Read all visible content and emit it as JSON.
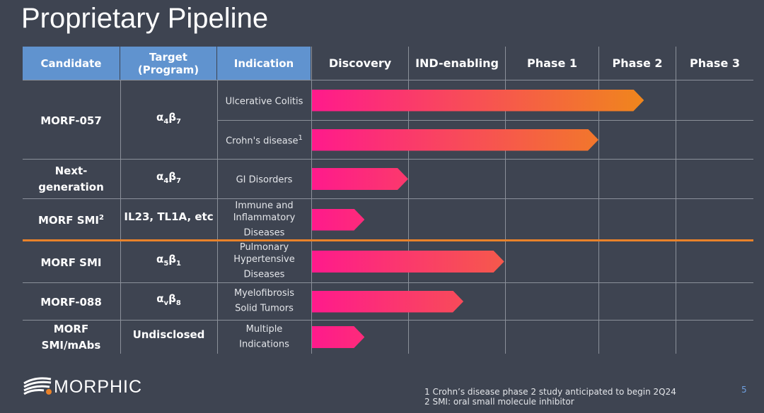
{
  "title": "Proprietary Pipeline",
  "headers": {
    "candidate": "Candidate",
    "target_line1": "Target",
    "target_line2": "(Program)",
    "indication": "Indication"
  },
  "stages": [
    "Discovery",
    "IND-enabling",
    "Phase 1",
    "Phase 2",
    "Phase 3"
  ],
  "colors": {
    "bar_start": "#ff1a8c",
    "bar_end": "#f0861c",
    "header": "#6093cf",
    "divider": "#e9822a",
    "background": "#3e4451"
  },
  "groups": [
    {
      "candidate": "MORF-057",
      "candidate_sup": "",
      "target": "α",
      "target_sub1": "4",
      "target_b": "β",
      "target_sub2": "7",
      "indications": [
        {
          "label": "Ulcerative Colitis",
          "sup": "",
          "progress_stages": 3.59
        },
        {
          "label": "Crohn's disease",
          "sup": "1",
          "progress_stages": 3.0
        }
      ]
    },
    {
      "candidate": "Next-generation",
      "candidate_sup": "",
      "target": "α",
      "target_sub1": "4",
      "target_b": "β",
      "target_sub2": "7",
      "indications": [
        {
          "label": "GI Disorders",
          "sup": "",
          "progress_stages": 1.0
        }
      ]
    },
    {
      "candidate": "MORF SMI",
      "candidate_sup": "2",
      "target": "IL23, TL1A, etc",
      "target_sub1": "",
      "target_b": "",
      "target_sub2": "",
      "indications": [
        {
          "label": "Immune and Inflammatory Diseases",
          "sup": "",
          "progress_stages": 0.55
        }
      ]
    },
    {
      "candidate": "MORF SMI",
      "candidate_sup": "",
      "target": "α",
      "target_sub1": "5",
      "target_b": "β",
      "target_sub2": "1",
      "indications": [
        {
          "label": "Pulmonary Hypertensive Diseases",
          "sup": "",
          "progress_stages": 1.99
        }
      ]
    },
    {
      "candidate": "MORF-088",
      "candidate_sup": "",
      "target": "α",
      "target_sub1": "v",
      "target_b": "β",
      "target_sub2": "8",
      "indications": [
        {
          "label": "Myelofibrosis Solid Tumors",
          "sup": "",
          "progress_stages": 1.57
        }
      ]
    },
    {
      "candidate": "MORF SMI/mAbs",
      "candidate_sup": "",
      "target": "Undisclosed",
      "target_sub1": "",
      "target_b": "",
      "target_sub2": "",
      "indications": [
        {
          "label": "Multiple Indications",
          "sup": "",
          "progress_stages": 0.55
        }
      ]
    }
  ],
  "footnotes": [
    "1 Crohn’s disease phase 2 study anticipated to begin 2Q24",
    "2 SMI: oral small molecule inhibitor"
  ],
  "page_number": "5",
  "logo_text": "MORPHIC"
}
